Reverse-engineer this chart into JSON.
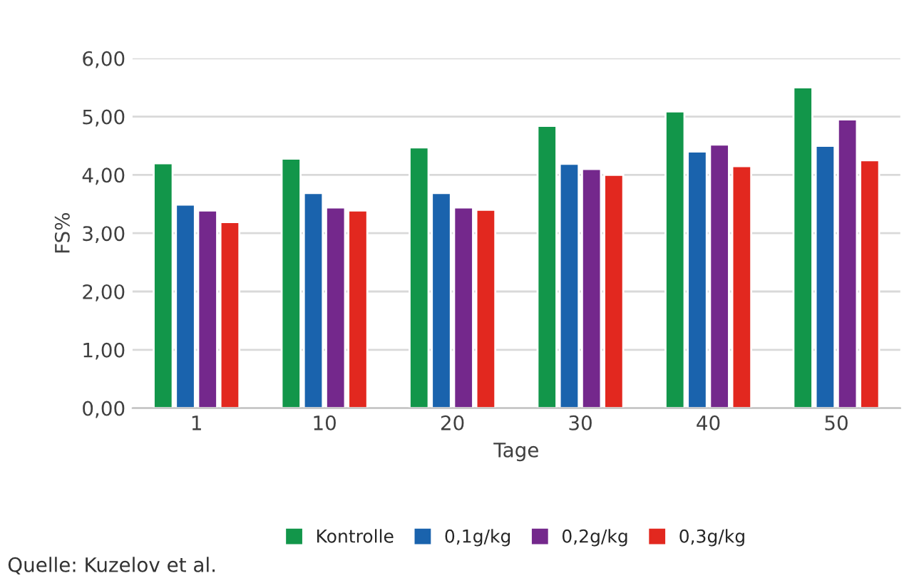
{
  "chart_data": {
    "type": "bar",
    "xlabel": "Tage",
    "ylabel": "FS%",
    "categories": [
      "1",
      "10",
      "20",
      "30",
      "40",
      "50"
    ],
    "series": [
      {
        "name": "Kontrolle",
        "color": "#12964a",
        "values": [
          4.2,
          4.28,
          4.47,
          4.84,
          5.09,
          5.5
        ]
      },
      {
        "name": "0,1g/kg",
        "color": "#1a63ad",
        "values": [
          3.49,
          3.69,
          3.69,
          4.19,
          4.4,
          4.5
        ]
      },
      {
        "name": "0,2g/kg",
        "color": "#74288c",
        "values": [
          3.39,
          3.44,
          3.44,
          4.1,
          4.52,
          4.95
        ]
      },
      {
        "name": "0,3g/kg",
        "color": "#e2281f",
        "values": [
          3.19,
          3.39,
          3.4,
          4.0,
          4.15,
          4.25
        ]
      }
    ],
    "ylim": [
      0,
      6
    ],
    "yticks": [
      {
        "value": 0,
        "label": "0,00"
      },
      {
        "value": 1,
        "label": "1,00"
      },
      {
        "value": 2,
        "label": "2,00"
      },
      {
        "value": 3,
        "label": "3,00"
      },
      {
        "value": 4,
        "label": "4,00"
      },
      {
        "value": 5,
        "label": "5,00"
      },
      {
        "value": 6,
        "label": "6,00"
      }
    ],
    "grid": "y",
    "legend": "bottom",
    "annotations": [
      "Quelle: Kuzelov et al."
    ]
  }
}
